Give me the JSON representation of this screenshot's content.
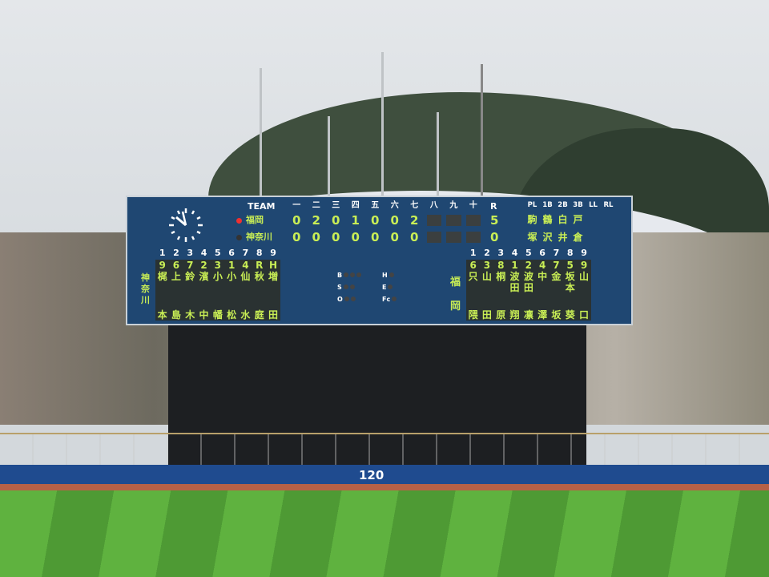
{
  "scoreboard": {
    "team_header": "TEAM",
    "innings": [
      "一",
      "二",
      "三",
      "四",
      "五",
      "六",
      "七",
      "八",
      "九",
      "十"
    ],
    "runs_header": "R",
    "teams": [
      {
        "name": "福岡",
        "scores": [
          "0",
          "2",
          "0",
          "1",
          "0",
          "0",
          "2",
          "",
          "",
          ""
        ],
        "runs": "5",
        "batting": true
      },
      {
        "name": "神奈川",
        "scores": [
          "0",
          "0",
          "0",
          "0",
          "0",
          "0",
          "0",
          "",
          "",
          ""
        ],
        "runs": "0",
        "batting": false
      }
    ],
    "umpire_headers": [
      "PL",
      "1B",
      "2B",
      "3B",
      "LL",
      "RL"
    ],
    "umpires_top": [
      "駒",
      "鶴",
      "白",
      "戸"
    ],
    "umpires_bottom": [
      "塚",
      "沢",
      "井",
      "倉"
    ],
    "order_numbers": [
      "1",
      "2",
      "3",
      "4",
      "5",
      "6",
      "7",
      "8",
      "9"
    ],
    "left_team": "神奈川",
    "left_lineup": [
      {
        "pos": "9",
        "top": "梶",
        "bottom": "本"
      },
      {
        "pos": "6",
        "top": "上",
        "bottom": "島"
      },
      {
        "pos": "7",
        "top": "鈴",
        "bottom": "木"
      },
      {
        "pos": "2",
        "top": "濱",
        "bottom": "中"
      },
      {
        "pos": "3",
        "top": "小",
        "bottom": "幡"
      },
      {
        "pos": "1",
        "top": "小",
        "bottom": "松"
      },
      {
        "pos": "4",
        "top": "仙",
        "bottom": "水"
      },
      {
        "pos": "R",
        "top": "秋",
        "bottom": "庭"
      },
      {
        "pos": "H",
        "top": "増",
        "bottom": "田"
      }
    ],
    "right_team": "福岡",
    "right_lineup": [
      {
        "pos": "6",
        "top": "只",
        "bottom": "隈"
      },
      {
        "pos": "3",
        "top": "山",
        "bottom": "田"
      },
      {
        "pos": "8",
        "top": "桐",
        "bottom": "原"
      },
      {
        "pos": "1",
        "top": "波田",
        "bottom": "翔"
      },
      {
        "pos": "2",
        "top": "波田",
        "bottom": "凛"
      },
      {
        "pos": "4",
        "top": "中",
        "bottom": "澤"
      },
      {
        "pos": "7",
        "top": "金",
        "bottom": "坂"
      },
      {
        "pos": "5",
        "top": "坂本",
        "bottom": "葵"
      },
      {
        "pos": "9",
        "top": "山",
        "bottom": "口"
      }
    ],
    "count_labels": [
      "B",
      "S",
      "O"
    ],
    "judge_labels": [
      "H",
      "E",
      "Fc"
    ]
  },
  "wall": {
    "distance": "120"
  },
  "colors": {
    "board": "#1f4772",
    "lamp": "#c9ee55",
    "wall": "#1f4b8f"
  }
}
